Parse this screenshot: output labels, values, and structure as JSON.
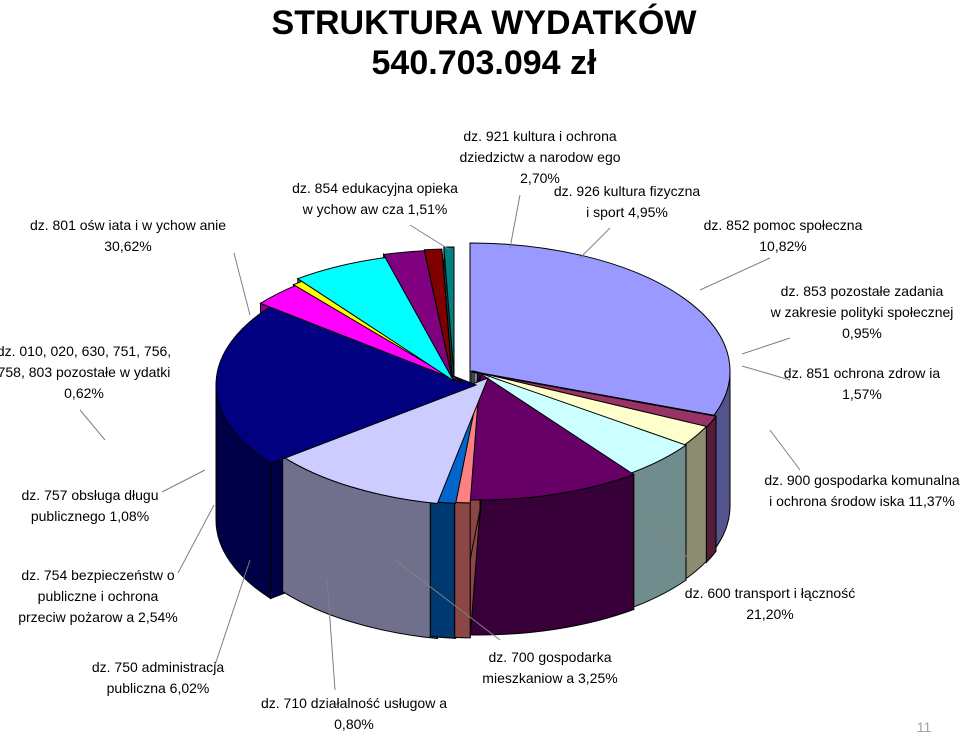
{
  "page_number": "11",
  "chart_data": {
    "type": "pie",
    "title": "STRUKTURA WYDATKÓW",
    "subtitle": "540.703.094 zł",
    "slices": [
      {
        "label_lines": [
          "dz. 801 ośw iata i w ychow anie",
          "30,62%"
        ],
        "value": 30.62,
        "color": "#9999FF"
      },
      {
        "label_lines": [
          "dz. 854 edukacyjna opieka",
          "w ychow aw cza 1,51%"
        ],
        "value": 1.51,
        "color": "#993366"
      },
      {
        "label_lines": [
          "dz. 921 kultura i ochrona",
          "dziedzictw a narodow ego",
          "2,70%"
        ],
        "value": 2.7,
        "color": "#FFFFCC"
      },
      {
        "label_lines": [
          "dz. 926 kultura fizyczna",
          "i sport 4,95%"
        ],
        "value": 4.95,
        "color": "#CCFFFF"
      },
      {
        "label_lines": [
          "dz. 852 pomoc społeczna",
          "10,82%"
        ],
        "value": 10.82,
        "color": "#660066"
      },
      {
        "label_lines": [
          "dz. 853 pozostałe zadania",
          "w  zakresie polityki społecznej",
          "0,95%"
        ],
        "value": 0.95,
        "color": "#FF8080"
      },
      {
        "label_lines": [
          "dz. 851 ochrona zdrow ia",
          "1,57%"
        ],
        "value": 1.57,
        "color": "#0066CC"
      },
      {
        "label_lines": [
          "dz. 900 gospodarka komunalna",
          "i ochrona środow iska 11,37%"
        ],
        "value": 11.37,
        "color": "#CCCCFF"
      },
      {
        "label_lines": [
          "dz. 600 transport i łączność",
          "21,20%"
        ],
        "value": 21.2,
        "color": "#000080"
      },
      {
        "label_lines": [
          "dz. 700 gospodarka",
          "mieszkaniow a 3,25%"
        ],
        "value": 3.25,
        "color": "#FF00FF"
      },
      {
        "label_lines": [
          "dz. 710 działalność usługow a",
          "0,80%"
        ],
        "value": 0.8,
        "color": "#FFFF00"
      },
      {
        "label_lines": [
          "dz. 750 administracja",
          "publiczna 6,02%"
        ],
        "value": 6.02,
        "color": "#00FFFF"
      },
      {
        "label_lines": [
          "dz. 754 bezpieczeństw o",
          "publiczne i ochrona",
          "przeciw pożarow a 2,54%"
        ],
        "value": 2.54,
        "color": "#800080"
      },
      {
        "label_lines": [
          "dz. 757 obsługa długu",
          "publicznego 1,08%"
        ],
        "value": 1.08,
        "color": "#800000"
      },
      {
        "label_lines": [
          "dz. 010, 020, 630, 751, 756,",
          "758, 803 pozostałe w ydatki",
          "0,62%"
        ],
        "value": 0.62,
        "color": "#008080"
      }
    ]
  }
}
